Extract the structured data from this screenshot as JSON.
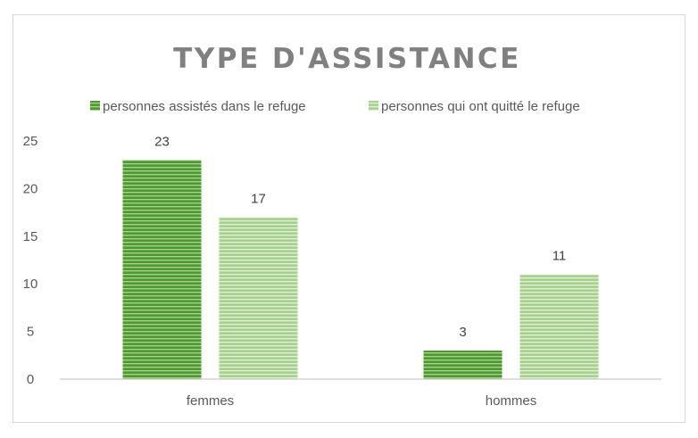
{
  "chart_data": {
    "type": "bar",
    "title": "TYPE D'ASSISTANCE",
    "categories": [
      "femmes",
      "hommes"
    ],
    "series": [
      {
        "name": "personnes assistés dans le refuge",
        "values": [
          23,
          3
        ],
        "color": "#4f9a2e",
        "stripe": "#a9d394"
      },
      {
        "name": "personnes qui ont quitté le refuge",
        "values": [
          17,
          11
        ],
        "color": "#a9d18e",
        "stripe": "#e2f0d9"
      }
    ],
    "ylim": [
      0,
      25
    ],
    "yticks": [
      0,
      5,
      10,
      15,
      20,
      25
    ],
    "xlabel": "",
    "ylabel": "",
    "legend": "top",
    "grid": false,
    "data_labels": true
  }
}
